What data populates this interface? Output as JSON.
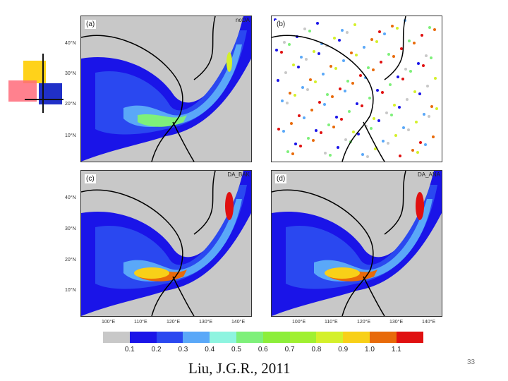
{
  "panels": [
    {
      "label": "(a)",
      "tag": "noDA"
    },
    {
      "label": "(b)",
      "tag": ""
    },
    {
      "label": "(c)",
      "tag": "DA_BAK"
    },
    {
      "label": "(d)",
      "tag": "DA_ANA"
    }
  ],
  "lat_labels": [
    "40°N",
    "30°N",
    "20°N",
    "10°N"
  ],
  "lon_labels": [
    "100°E",
    "110°E",
    "120°E",
    "130°E",
    "140°E"
  ],
  "colorbar": {
    "colors": [
      "#c8c8c8",
      "#1a14e8",
      "#2a48f0",
      "#5aa8f8",
      "#8ef4e0",
      "#7ef07a",
      "#8cee3a",
      "#a0f030",
      "#d4f02a",
      "#f8d018",
      "#e86a0a",
      "#e01010"
    ],
    "labels": [
      "0.1",
      "0.2",
      "0.3",
      "0.4",
      "0.5",
      "0.6",
      "0.7",
      "0.8",
      "0.9",
      "1.0",
      "1.1"
    ]
  },
  "citation": "Liu, J.G.R., 2011",
  "page_number": "33"
}
